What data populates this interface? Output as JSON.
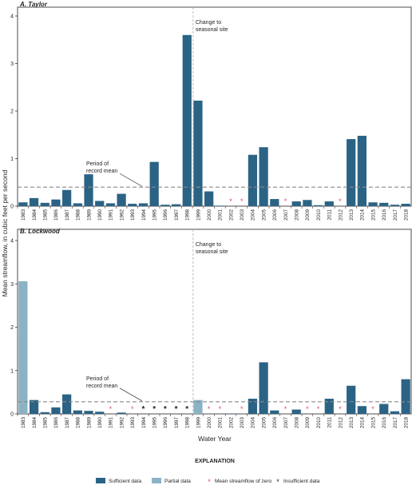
{
  "figure": {
    "ylabel": "Mean streamflow, in cubic feet per second",
    "xlabel": "Water Year",
    "legend_title": "EXPLANATION",
    "legend": [
      {
        "kind": "sufficient",
        "label": "Sufficient data"
      },
      {
        "kind": "partial",
        "label": "Partial data"
      },
      {
        "kind": "zero",
        "label": "Mean streamflow of zero"
      },
      {
        "kind": "insufficient",
        "label": "Insufficient data"
      }
    ]
  },
  "colors": {
    "sufficient": "#2b6385",
    "partial": "#8ab3c5",
    "zero_marker": "#e0457a",
    "insufficient_marker": "#231f20",
    "mean_line": "#8a8a8a",
    "seasonal_line": "#b5b5b5"
  },
  "chart_data": [
    {
      "type": "bar",
      "title": "A. Taylor",
      "categories": [
        "1983",
        "1984",
        "1985",
        "1986",
        "1987",
        "1988",
        "1989",
        "1990",
        "1991",
        "1992",
        "1993",
        "1994",
        "1995",
        "1996",
        "1997",
        "1998",
        "1999",
        "2000",
        "2001",
        "2002",
        "2003",
        "2004",
        "2005",
        "2006",
        "2007",
        "2008",
        "2009",
        "2010",
        "2011",
        "2012",
        "2013",
        "2014",
        "2015",
        "2016",
        "2017",
        "2018"
      ],
      "values": [
        0.08,
        0.17,
        0.07,
        0.14,
        0.34,
        0.06,
        0.67,
        0.11,
        0.06,
        0.26,
        0.05,
        0.06,
        0.93,
        0.03,
        0.04,
        3.6,
        2.22,
        0.31,
        0.01,
        0,
        0,
        1.08,
        1.24,
        0.15,
        0,
        0.1,
        0.13,
        0.02,
        0.1,
        0,
        1.41,
        1.48,
        0.08,
        0.07,
        0.03,
        0.05
      ],
      "status": [
        "sufficient",
        "sufficient",
        "sufficient",
        "sufficient",
        "sufficient",
        "sufficient",
        "sufficient",
        "sufficient",
        "sufficient",
        "sufficient",
        "sufficient",
        "sufficient",
        "sufficient",
        "sufficient",
        "sufficient",
        "sufficient",
        "sufficient",
        "sufficient",
        "sufficient",
        "zero",
        "zero",
        "sufficient",
        "sufficient",
        "sufficient",
        "zero",
        "sufficient",
        "sufficient",
        "sufficient",
        "sufficient",
        "zero",
        "sufficient",
        "sufficient",
        "sufficient",
        "sufficient",
        "sufficient",
        "sufficient"
      ],
      "ylim": [
        0,
        4
      ],
      "yticks": [
        "0",
        "1",
        "2",
        "3",
        "4"
      ],
      "mean": 0.4,
      "mean_label": [
        "Period of",
        "record mean"
      ],
      "change_year": "1999",
      "change_label": [
        "Change to",
        "seasonal site"
      ]
    },
    {
      "type": "bar",
      "title": "B. Lockwood",
      "categories": [
        "1983",
        "1984",
        "1985",
        "1986",
        "1987",
        "1988",
        "1989",
        "1990",
        "1991",
        "1992",
        "1993",
        "1994",
        "1995",
        "1996",
        "1997",
        "1998",
        "1999",
        "2000",
        "2001",
        "2002",
        "2003",
        "2004",
        "2005",
        "2006",
        "2007",
        "2008",
        "2009",
        "2010",
        "2011",
        "2012",
        "2013",
        "2014",
        "2015",
        "2016",
        "2017",
        "2018"
      ],
      "values": [
        3.06,
        0.32,
        0.04,
        0.15,
        0.45,
        0.08,
        0.07,
        0.05,
        0,
        0.03,
        0,
        null,
        null,
        null,
        null,
        null,
        0.32,
        0,
        0,
        0.01,
        0,
        0.35,
        1.19,
        0.08,
        0,
        0.1,
        0,
        0,
        0.35,
        0,
        0.65,
        0.18,
        0,
        0.23,
        0.06,
        0.8
      ],
      "status": [
        "partial",
        "sufficient",
        "sufficient",
        "sufficient",
        "sufficient",
        "sufficient",
        "sufficient",
        "sufficient",
        "zero",
        "sufficient",
        "zero",
        "insufficient",
        "insufficient",
        "insufficient",
        "insufficient",
        "insufficient",
        "partial",
        "zero",
        "zero",
        "sufficient",
        "zero",
        "sufficient",
        "sufficient",
        "sufficient",
        "zero",
        "sufficient",
        "zero",
        "zero",
        "sufficient",
        "zero",
        "sufficient",
        "sufficient",
        "zero",
        "sufficient",
        "sufficient",
        "sufficient"
      ],
      "ylim": [
        0,
        4
      ],
      "yticks": [
        "0",
        "1",
        "2",
        "3",
        "4"
      ],
      "mean": 0.28,
      "mean_label": [
        "Period of",
        "record mean"
      ],
      "change_year": "1999",
      "change_label": [
        "Change to",
        "seasonal site"
      ]
    }
  ]
}
